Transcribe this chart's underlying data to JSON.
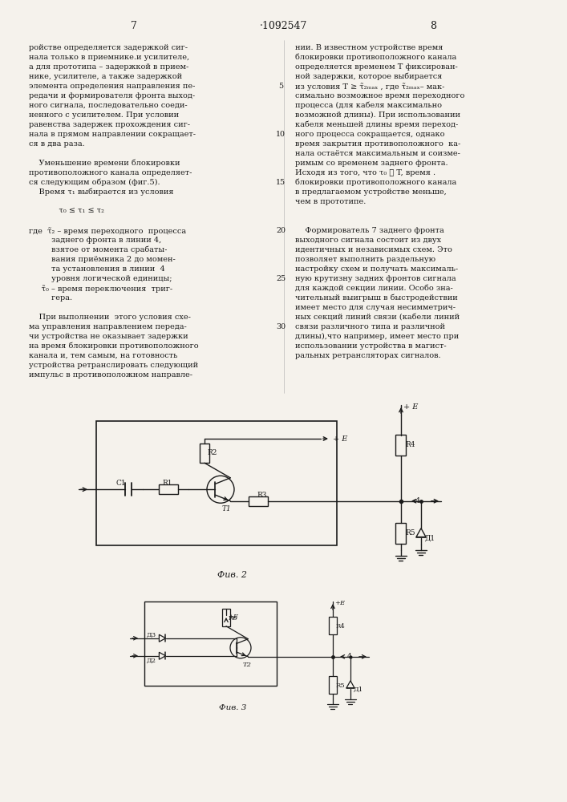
{
  "page_width": 7.07,
  "page_height": 10.0,
  "bg_color": "#f5f2ec",
  "text_color": "#1a1a1a",
  "title": "·1092547",
  "page_left": "7",
  "page_right": "8",
  "col1_text": [
    "ройстве определяется задержкой сиг-",
    "нала только в приемнике.и усилителе,",
    "а для прототипа – задержкой в прием-",
    "нике, усилителе, а также задержкой",
    "элемента определения направления пе-",
    "редачи и формирователя фронта выход-",
    "ного сигнала, последовательно соеди-",
    "ненного с усилителем. При условии",
    "равенства задержек прохождения сиг-",
    "нала в прямом направлении сокращает-",
    "ся в два раза.",
    "",
    "    Уменьшение времени блокировки",
    "противоположного канала определяет-",
    "ся следующим образом (фиг.5).",
    "    Время τ₁ выбирается из условия",
    "",
    "            τ₀ ≤ τ₁ ≤ τ₂",
    "",
    "где  τ̃₂ – время переходного  процесса",
    "         заднего фронта в линии 4,",
    "         взятое от момента срабаты-",
    "         вания приёмника 2 до момен-",
    "         та установления в линии  4",
    "         уровня логической единицы;",
    "     τ̃₀ – время переключения  триг-",
    "         гера.",
    "",
    "    При выполнении  этого условия схе-",
    "ма управления направлением переда-",
    "чи устройства не оказывает задержки",
    "на время блокировки противоположного",
    "канала и, тем самым, на готовность",
    "устройства ретранслировать следующий",
    "импульс в противоположном направле-"
  ],
  "col2_text": [
    "нии. В известном устройстве время",
    "блокировки противоположного канала",
    "определяется временем T фиксирован-",
    "ной задержки, которое выбирается",
    "из условия T ≥ τ̃₂ₘₐₓ , где τ̃₂ₘₐₓ– мак-",
    "симально возможное время переходного",
    "процесса (для кабеля максимально",
    "возможной длины). При использовании",
    "кабеля меньшей длины время переход-",
    "ного процесса сокращается, однако",
    "время закрытия противоположного  ка-",
    "нала остаётся максимальным и соизме-",
    "римым со временем заднего фронта.",
    "Исходя из того, что τ₀ ≪ T, время .",
    "блокировки противоположного канала",
    "в предлагаемом устройстве меньше,",
    "чем в прототипе.",
    "",
    "",
    "    Формирователь 7 заднего фронта",
    "выходного сигнала состоит из двух",
    "идентичных и независимых схем. Это",
    "позволяет выполнить раздельную",
    "настройку схем и получать максималь-",
    "ную крутизну задних фронтов сигнала",
    "для каждой секции линии. Особо зна-",
    "чительный выигрыш в быстродействии",
    "имеет место для случая несимметрич-",
    "ных секций линий связи (кабели линий",
    "связи различного типа и различной",
    "длины),что например, имеет место при",
    "использовании устройства в магист-",
    "ральных ретрансляторах сигналов."
  ],
  "fig2_label": "Фив. 2",
  "fig3_label": "Фив. 3"
}
